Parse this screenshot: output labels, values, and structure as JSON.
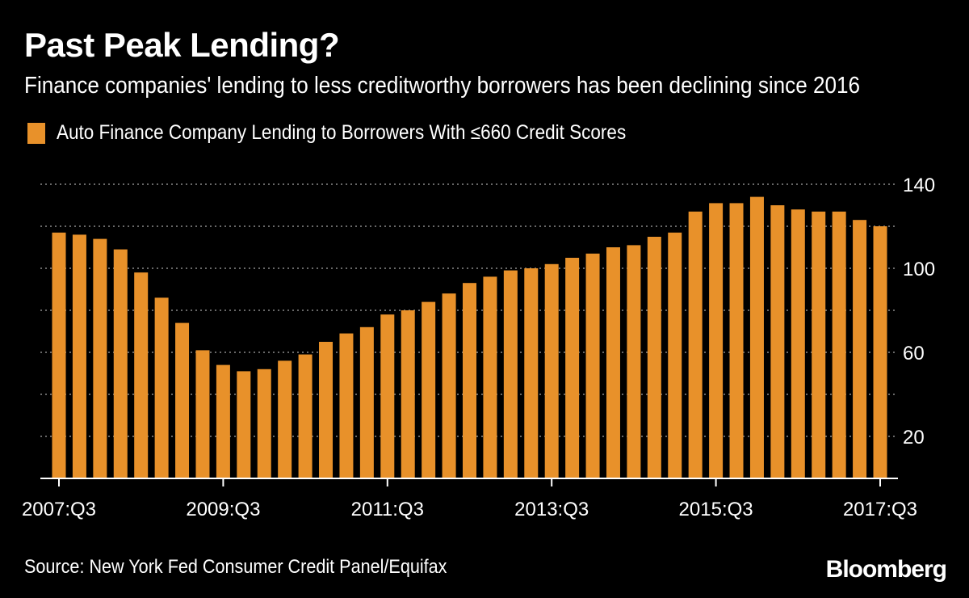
{
  "header": {
    "title": "Past Peak Lending?",
    "subtitle": "Finance companies' lending to less creditworthy borrowers has been declining since 2016"
  },
  "legend": {
    "label": "Auto Finance Company Lending to Borrowers With ≤660 Credit Scores",
    "color": "#E8912A"
  },
  "footer": {
    "source": "Source: New York Fed Consumer Credit Panel/Equifax",
    "brand": "Bloomberg"
  },
  "chart_data": {
    "type": "bar",
    "title": "Past Peak Lending?",
    "subtitle": "Finance companies' lending to less creditworthy borrowers has been declining since 2016",
    "xlabel": "",
    "ylabel": "",
    "ylim": [
      0,
      140
    ],
    "yticks": [
      20,
      60,
      100,
      140
    ],
    "gridlines_at": [
      20,
      40,
      60,
      80,
      100,
      120,
      140
    ],
    "grid": true,
    "y_axis_side": "right",
    "legend_position": "top-left",
    "bar_color": "#E8912A",
    "x_tick_labels": [
      "2007:Q3",
      "2009:Q3",
      "2011:Q3",
      "2013:Q3",
      "2015:Q3",
      "2017:Q3"
    ],
    "categories": [
      "2007:Q3",
      "2007:Q4",
      "2008:Q1",
      "2008:Q2",
      "2008:Q3",
      "2008:Q4",
      "2009:Q1",
      "2009:Q2",
      "2009:Q3",
      "2009:Q4",
      "2010:Q1",
      "2010:Q2",
      "2010:Q3",
      "2010:Q4",
      "2011:Q1",
      "2011:Q2",
      "2011:Q3",
      "2011:Q4",
      "2012:Q1",
      "2012:Q2",
      "2012:Q3",
      "2012:Q4",
      "2013:Q1",
      "2013:Q2",
      "2013:Q3",
      "2013:Q4",
      "2014:Q1",
      "2014:Q2",
      "2014:Q3",
      "2014:Q4",
      "2015:Q1",
      "2015:Q2",
      "2015:Q3",
      "2015:Q4",
      "2016:Q1",
      "2016:Q2",
      "2016:Q3",
      "2016:Q4",
      "2017:Q1",
      "2017:Q2",
      "2017:Q3"
    ],
    "series": [
      {
        "values": [
          117,
          116,
          114,
          109,
          98,
          86,
          74,
          61,
          54,
          51,
          52,
          56,
          59,
          65,
          69,
          72,
          78,
          80,
          84,
          88,
          93,
          96,
          99,
          100,
          102,
          105,
          107,
          110,
          111,
          115,
          117,
          127,
          131,
          131,
          134,
          130,
          128,
          127,
          127,
          123,
          120
        ]
      }
    ]
  }
}
